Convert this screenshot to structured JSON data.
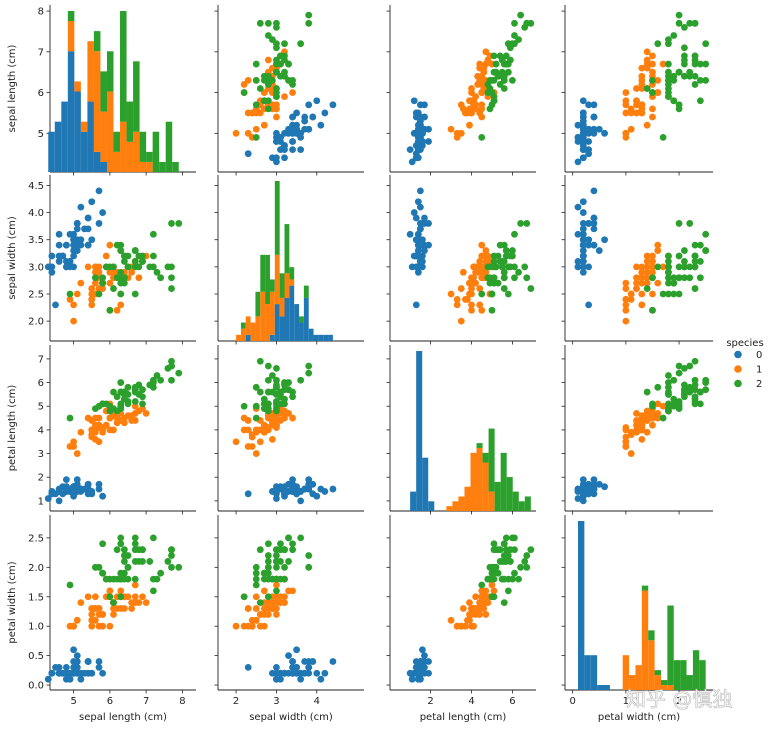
{
  "chart_data": {
    "type": "scatter",
    "subtype": "pairplot",
    "variables": [
      "sepal length (cm)",
      "sepal width (cm)",
      "petal length (cm)",
      "petal width (cm)"
    ],
    "axis_ranges": {
      "sepal length (cm)": [
        4.1,
        8.1
      ],
      "sepal width (cm)": [
        1.8,
        4.6
      ],
      "petal length (cm)": [
        0.7,
        7.25
      ],
      "petal width (cm)": [
        -0.05,
        2.6
      ]
    },
    "ticks": {
      "sepal length (cm)": [
        5,
        6,
        7,
        8
      ],
      "sepal width (cm)": [
        2.0,
        2.5,
        3.0,
        3.5,
        4.0,
        4.5
      ],
      "petal length (cm)": [
        1,
        2,
        3,
        4,
        5,
        6,
        7
      ],
      "petal width (cm)": [
        0.0,
        0.5,
        1.0,
        1.5,
        2.0,
        2.5
      ]
    },
    "tick_labels": {
      "sepal length (cm)": [
        "5",
        "6",
        "7",
        "8"
      ],
      "sepal width (cm)": [
        "2.0",
        "2.5",
        "3.0",
        "3.5",
        "4.0",
        "4.5"
      ],
      "petal length (cm)": [
        "1",
        "2",
        "3",
        "4",
        "5",
        "6",
        "7"
      ],
      "petal width (cm)": [
        "0.0",
        "0.5",
        "1.0",
        "1.5",
        "2.0",
        "2.5"
      ]
    },
    "x_tick_labels": {
      "sepal length (cm)": [
        "5",
        "6",
        "7",
        "8"
      ],
      "sepal width (cm)": [
        "2",
        "3",
        "4"
      ],
      "petal length (cm)": [
        "2",
        "4",
        "6"
      ],
      "petal width (cm)": [
        "0",
        "1",
        "2"
      ]
    },
    "x_ticks": {
      "sepal length (cm)": [
        5,
        6,
        7,
        8
      ],
      "sepal width (cm)": [
        2,
        3,
        4
      ],
      "petal length (cm)": [
        2,
        4,
        6
      ],
      "petal width (cm)": [
        0,
        1,
        2
      ]
    },
    "legend": {
      "title": "species",
      "placement": "right",
      "entries": [
        "0",
        "1",
        "2"
      ]
    },
    "colors": {
      "0": "#1f77b4",
      "1": "#ff7f0e",
      "2": "#2ca02c"
    },
    "grid": false,
    "series": [
      {
        "name": "0",
        "color": "#1f77b4",
        "points": [
          [
            5.1,
            3.5,
            1.4,
            0.2
          ],
          [
            4.9,
            3.0,
            1.4,
            0.2
          ],
          [
            4.7,
            3.2,
            1.3,
            0.2
          ],
          [
            4.6,
            3.1,
            1.5,
            0.2
          ],
          [
            5.0,
            3.6,
            1.4,
            0.2
          ],
          [
            5.4,
            3.9,
            1.7,
            0.4
          ],
          [
            4.6,
            3.4,
            1.4,
            0.3
          ],
          [
            5.0,
            3.4,
            1.5,
            0.2
          ],
          [
            4.4,
            2.9,
            1.4,
            0.2
          ],
          [
            4.9,
            3.1,
            1.5,
            0.1
          ],
          [
            5.4,
            3.7,
            1.5,
            0.2
          ],
          [
            4.8,
            3.4,
            1.6,
            0.2
          ],
          [
            4.8,
            3.0,
            1.4,
            0.1
          ],
          [
            4.3,
            3.0,
            1.1,
            0.1
          ],
          [
            5.8,
            4.0,
            1.2,
            0.2
          ],
          [
            5.7,
            4.4,
            1.5,
            0.4
          ],
          [
            5.4,
            3.9,
            1.3,
            0.4
          ],
          [
            5.1,
            3.5,
            1.4,
            0.3
          ],
          [
            5.7,
            3.8,
            1.7,
            0.3
          ],
          [
            5.1,
            3.8,
            1.5,
            0.3
          ],
          [
            5.4,
            3.4,
            1.7,
            0.2
          ],
          [
            5.1,
            3.7,
            1.5,
            0.4
          ],
          [
            4.6,
            3.6,
            1.0,
            0.2
          ],
          [
            5.1,
            3.3,
            1.7,
            0.5
          ],
          [
            4.8,
            3.4,
            1.9,
            0.2
          ],
          [
            5.0,
            3.0,
            1.6,
            0.2
          ],
          [
            5.0,
            3.4,
            1.6,
            0.4
          ],
          [
            5.2,
            3.5,
            1.5,
            0.2
          ],
          [
            5.2,
            3.4,
            1.4,
            0.2
          ],
          [
            4.7,
            3.2,
            1.6,
            0.2
          ],
          [
            4.8,
            3.1,
            1.6,
            0.2
          ],
          [
            5.4,
            3.4,
            1.5,
            0.4
          ],
          [
            5.2,
            4.1,
            1.5,
            0.1
          ],
          [
            5.5,
            4.2,
            1.4,
            0.2
          ],
          [
            4.9,
            3.1,
            1.5,
            0.2
          ],
          [
            5.0,
            3.2,
            1.2,
            0.2
          ],
          [
            5.5,
            3.5,
            1.3,
            0.2
          ],
          [
            4.9,
            3.6,
            1.4,
            0.1
          ],
          [
            4.4,
            3.0,
            1.3,
            0.2
          ],
          [
            5.1,
            3.4,
            1.5,
            0.2
          ],
          [
            5.0,
            3.5,
            1.3,
            0.3
          ],
          [
            4.5,
            2.3,
            1.3,
            0.3
          ],
          [
            4.4,
            3.2,
            1.3,
            0.2
          ],
          [
            5.0,
            3.5,
            1.6,
            0.6
          ],
          [
            5.1,
            3.8,
            1.9,
            0.4
          ],
          [
            4.8,
            3.0,
            1.4,
            0.3
          ],
          [
            5.1,
            3.8,
            1.6,
            0.2
          ],
          [
            4.6,
            3.2,
            1.4,
            0.2
          ],
          [
            5.3,
            3.7,
            1.5,
            0.2
          ],
          [
            5.0,
            3.3,
            1.4,
            0.2
          ]
        ]
      },
      {
        "name": "1",
        "color": "#ff7f0e",
        "points": [
          [
            7.0,
            3.2,
            4.7,
            1.4
          ],
          [
            6.4,
            3.2,
            4.5,
            1.5
          ],
          [
            6.9,
            3.1,
            4.9,
            1.5
          ],
          [
            5.5,
            2.3,
            4.0,
            1.3
          ],
          [
            6.5,
            2.8,
            4.6,
            1.5
          ],
          [
            5.7,
            2.8,
            4.5,
            1.3
          ],
          [
            6.3,
            3.3,
            4.7,
            1.6
          ],
          [
            4.9,
            2.4,
            3.3,
            1.0
          ],
          [
            6.6,
            2.9,
            4.6,
            1.3
          ],
          [
            5.2,
            2.7,
            3.9,
            1.4
          ],
          [
            5.0,
            2.0,
            3.5,
            1.0
          ],
          [
            5.9,
            3.0,
            4.2,
            1.5
          ],
          [
            6.0,
            2.2,
            4.0,
            1.0
          ],
          [
            6.1,
            2.9,
            4.7,
            1.4
          ],
          [
            5.6,
            2.9,
            3.6,
            1.3
          ],
          [
            6.7,
            3.1,
            4.4,
            1.4
          ],
          [
            5.6,
            3.0,
            4.5,
            1.5
          ],
          [
            5.8,
            2.7,
            4.1,
            1.0
          ],
          [
            6.2,
            2.2,
            4.5,
            1.5
          ],
          [
            5.6,
            2.5,
            3.9,
            1.1
          ],
          [
            5.9,
            3.2,
            4.8,
            1.8
          ],
          [
            6.1,
            2.8,
            4.0,
            1.3
          ],
          [
            6.3,
            2.5,
            4.9,
            1.5
          ],
          [
            6.1,
            2.8,
            4.7,
            1.2
          ],
          [
            6.4,
            2.9,
            4.3,
            1.3
          ],
          [
            6.6,
            3.0,
            4.4,
            1.4
          ],
          [
            6.8,
            2.8,
            4.8,
            1.4
          ],
          [
            6.7,
            3.0,
            5.0,
            1.7
          ],
          [
            6.0,
            2.9,
            4.5,
            1.5
          ],
          [
            5.7,
            2.6,
            3.5,
            1.0
          ],
          [
            5.5,
            2.4,
            3.8,
            1.1
          ],
          [
            5.5,
            2.4,
            3.7,
            1.0
          ],
          [
            5.8,
            2.7,
            3.9,
            1.2
          ],
          [
            6.0,
            2.7,
            5.1,
            1.6
          ],
          [
            5.4,
            3.0,
            4.5,
            1.5
          ],
          [
            6.0,
            3.4,
            4.5,
            1.6
          ],
          [
            6.7,
            3.1,
            4.7,
            1.5
          ],
          [
            6.3,
            2.3,
            4.4,
            1.3
          ],
          [
            5.6,
            3.0,
            4.1,
            1.3
          ],
          [
            5.5,
            2.5,
            4.0,
            1.3
          ],
          [
            5.5,
            2.6,
            4.4,
            1.2
          ],
          [
            6.1,
            3.0,
            4.6,
            1.4
          ],
          [
            5.8,
            2.6,
            4.0,
            1.2
          ],
          [
            5.0,
            2.3,
            3.3,
            1.0
          ],
          [
            5.6,
            2.7,
            4.2,
            1.3
          ],
          [
            5.7,
            3.0,
            4.2,
            1.2
          ],
          [
            5.7,
            2.9,
            4.2,
            1.3
          ],
          [
            6.2,
            2.9,
            4.3,
            1.3
          ],
          [
            5.1,
            2.5,
            3.0,
            1.1
          ],
          [
            5.7,
            2.8,
            4.1,
            1.3
          ]
        ]
      },
      {
        "name": "2",
        "color": "#2ca02c",
        "points": [
          [
            6.3,
            3.3,
            6.0,
            2.5
          ],
          [
            5.8,
            2.7,
            5.1,
            1.9
          ],
          [
            7.1,
            3.0,
            5.9,
            2.1
          ],
          [
            6.3,
            2.9,
            5.6,
            1.8
          ],
          [
            6.5,
            3.0,
            5.8,
            2.2
          ],
          [
            7.6,
            3.0,
            6.6,
            2.1
          ],
          [
            4.9,
            2.5,
            4.5,
            1.7
          ],
          [
            7.3,
            2.9,
            6.3,
            1.8
          ],
          [
            6.7,
            2.5,
            5.8,
            1.8
          ],
          [
            7.2,
            3.6,
            6.1,
            2.5
          ],
          [
            6.5,
            3.2,
            5.1,
            2.0
          ],
          [
            6.4,
            2.7,
            5.3,
            1.9
          ],
          [
            6.8,
            3.0,
            5.5,
            2.1
          ],
          [
            5.7,
            2.5,
            5.0,
            2.0
          ],
          [
            5.8,
            2.8,
            5.1,
            2.4
          ],
          [
            6.4,
            3.2,
            5.3,
            2.3
          ],
          [
            6.5,
            3.0,
            5.5,
            1.8
          ],
          [
            7.7,
            3.8,
            6.7,
            2.2
          ],
          [
            7.7,
            2.6,
            6.9,
            2.3
          ],
          [
            6.0,
            2.2,
            5.0,
            1.5
          ],
          [
            6.9,
            3.2,
            5.7,
            2.3
          ],
          [
            5.6,
            2.8,
            4.9,
            2.0
          ],
          [
            7.7,
            2.8,
            6.7,
            2.0
          ],
          [
            6.3,
            2.7,
            4.9,
            1.8
          ],
          [
            6.7,
            3.3,
            5.7,
            2.1
          ],
          [
            7.2,
            3.2,
            6.0,
            1.8
          ],
          [
            6.2,
            2.8,
            4.8,
            1.8
          ],
          [
            6.1,
            3.0,
            4.9,
            1.8
          ],
          [
            6.4,
            2.8,
            5.6,
            2.1
          ],
          [
            7.2,
            3.0,
            5.8,
            1.6
          ],
          [
            7.4,
            2.8,
            6.1,
            1.9
          ],
          [
            7.9,
            3.8,
            6.4,
            2.0
          ],
          [
            6.4,
            2.8,
            5.6,
            2.2
          ],
          [
            6.3,
            2.8,
            5.1,
            1.5
          ],
          [
            6.1,
            2.6,
            5.6,
            1.4
          ],
          [
            7.7,
            3.0,
            6.1,
            2.3
          ],
          [
            6.3,
            3.4,
            5.6,
            2.4
          ],
          [
            6.4,
            3.1,
            5.5,
            1.8
          ],
          [
            6.0,
            3.0,
            4.8,
            1.8
          ],
          [
            6.9,
            3.1,
            5.4,
            2.1
          ],
          [
            6.7,
            3.1,
            5.6,
            2.4
          ],
          [
            6.9,
            3.1,
            5.1,
            2.3
          ],
          [
            5.8,
            2.7,
            5.1,
            1.9
          ],
          [
            6.8,
            3.2,
            5.9,
            2.3
          ],
          [
            6.7,
            3.3,
            5.7,
            2.5
          ],
          [
            6.7,
            3.0,
            5.2,
            2.3
          ],
          [
            6.3,
            2.5,
            5.0,
            1.9
          ],
          [
            6.5,
            3.0,
            5.2,
            2.0
          ],
          [
            6.2,
            3.4,
            5.4,
            2.3
          ],
          [
            5.9,
            3.0,
            5.1,
            1.8
          ]
        ]
      }
    ]
  },
  "watermark": "知乎 @慎独"
}
